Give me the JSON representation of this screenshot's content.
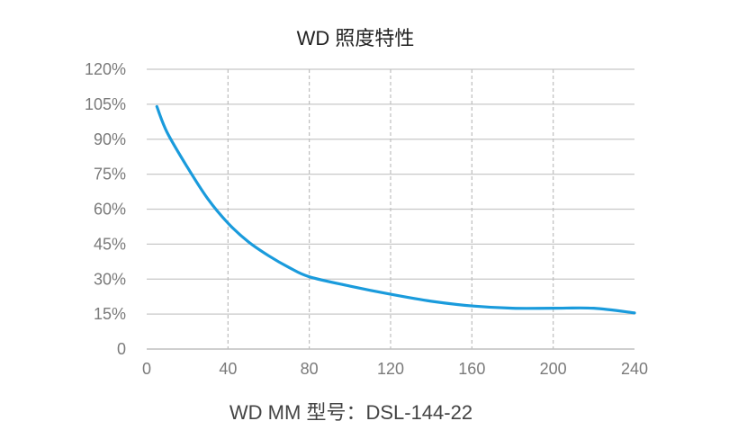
{
  "chart_data": {
    "type": "line",
    "title": "WD 照度特性",
    "xlabel": "WD MM 型号：DSL-144-22",
    "ylabel": "",
    "xlim": [
      0,
      240
    ],
    "ylim": [
      0,
      120
    ],
    "x_ticks": [
      "0",
      "40",
      "80",
      "120",
      "160",
      "200",
      "240"
    ],
    "y_ticks": [
      "0",
      "15%",
      "30%",
      "45%",
      "60%",
      "75%",
      "90%",
      "105%",
      "120%"
    ],
    "grid": {
      "horizontal": "solid",
      "vertical": "dashed"
    },
    "legend": "none",
    "series": [
      {
        "color": "#1a9bdc",
        "x": [
          5,
          10,
          20,
          30,
          40,
          50,
          60,
          70,
          80,
          100,
          120,
          140,
          160,
          180,
          200,
          220,
          240
        ],
        "y": [
          104,
          93,
          78,
          64.5,
          54,
          46,
          40,
          35,
          31,
          27,
          23.5,
          20.5,
          18.5,
          17.5,
          17.5,
          17.5,
          15.5
        ]
      }
    ]
  }
}
